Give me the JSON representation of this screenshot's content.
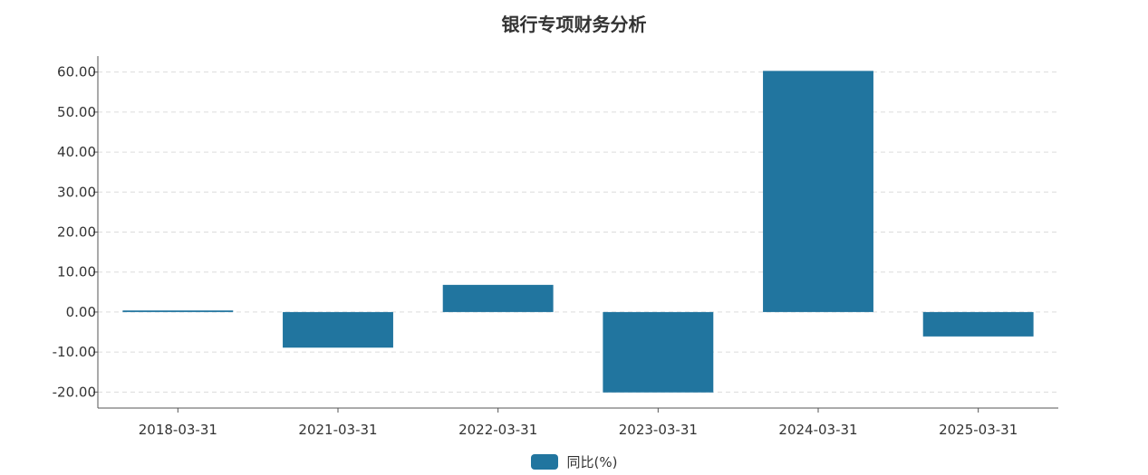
{
  "chart_data": {
    "type": "bar",
    "title": "银行专项财务分析",
    "categories": [
      "2018-03-31",
      "2021-03-31",
      "2022-03-31",
      "2023-03-31",
      "2024-03-31",
      "2025-03-31"
    ],
    "series": [
      {
        "name": "同比(%)",
        "values": [
          0.4,
          -8.9,
          6.8,
          -20.1,
          60.3,
          -6.1
        ],
        "color": "#21759f"
      }
    ],
    "yticks": [
      "60.00",
      "50.00",
      "40.00",
      "30.00",
      "20.00",
      "10.00",
      "0.00",
      "-10.00",
      "-20.00"
    ],
    "ylim": [
      -24,
      64
    ],
    "grid": true,
    "legend_position": "bottom-center"
  }
}
